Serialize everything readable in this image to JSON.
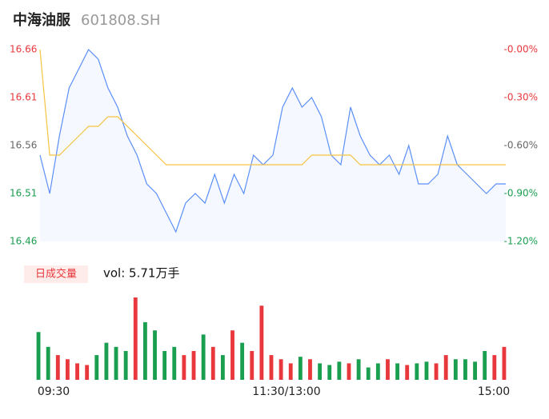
{
  "header": {
    "title": "中海油服",
    "subtitle": "601808.SH"
  },
  "chart_data": [
    {
      "type": "line",
      "categories": [
        "09:30",
        null,
        null,
        null,
        null,
        null,
        null,
        null,
        null,
        null,
        null,
        null,
        null,
        null,
        null,
        null,
        null,
        null,
        null,
        null,
        null,
        null,
        null,
        null,
        "11:30/13:00",
        null,
        null,
        null,
        null,
        null,
        null,
        null,
        null,
        null,
        null,
        null,
        null,
        null,
        null,
        null,
        null,
        null,
        null,
        null,
        null,
        null,
        null,
        null,
        "15:00"
      ],
      "ylim": [
        16.46,
        16.66
      ],
      "yticks": [
        16.46,
        16.51,
        16.56,
        16.61,
        16.66
      ],
      "y2lim": [
        -1.2,
        0
      ],
      "y2ticks": [
        {
          "value": -1.2,
          "label": "-1.20%"
        },
        {
          "value": -0.9,
          "label": "-0.90%"
        },
        {
          "value": -0.6,
          "label": "-0.60%"
        },
        {
          "value": -0.3,
          "label": "-0.30%"
        },
        {
          "value": 0,
          "label": "-0.00%"
        }
      ],
      "up_color": "#e8383d",
      "flat_color": "#666666",
      "down_color": "#1a9e4f",
      "series": [
        {
          "color": "#5b8ff9",
          "fill": true,
          "values": [
            16.55,
            16.51,
            16.57,
            16.62,
            16.64,
            16.66,
            16.65,
            16.62,
            16.6,
            16.57,
            16.55,
            16.52,
            16.51,
            16.49,
            16.47,
            16.5,
            16.51,
            16.5,
            16.53,
            16.5,
            16.53,
            16.51,
            16.55,
            16.54,
            16.55,
            16.6,
            16.62,
            16.6,
            16.61,
            16.59,
            16.55,
            16.54,
            16.6,
            16.57,
            16.55,
            16.54,
            16.55,
            16.53,
            16.56,
            16.52,
            16.52,
            16.53,
            16.57,
            16.54,
            16.53,
            16.52,
            16.51,
            16.52,
            16.52
          ]
        },
        {
          "color": "#f5c342",
          "fill": false,
          "values": [
            16.66,
            16.55,
            16.55,
            16.56,
            16.57,
            16.58,
            16.58,
            16.59,
            16.59,
            16.58,
            16.57,
            16.56,
            16.55,
            16.54,
            16.54,
            16.54,
            16.54,
            16.54,
            16.54,
            16.54,
            16.54,
            16.54,
            16.54,
            16.54,
            16.54,
            16.54,
            16.54,
            16.54,
            16.55,
            16.55,
            16.55,
            16.55,
            16.55,
            16.54,
            16.54,
            16.54,
            16.54,
            16.54,
            16.54,
            16.54,
            16.54,
            16.54,
            16.54,
            16.54,
            16.54,
            16.54,
            16.54,
            16.54,
            16.54
          ]
        }
      ]
    },
    {
      "type": "bar",
      "label": "日成交量",
      "annotation": "vol: 5.71万手",
      "values": [
        58,
        40,
        30,
        25,
        20,
        18,
        30,
        45,
        40,
        35,
        100,
        70,
        60,
        35,
        40,
        30,
        35,
        55,
        40,
        30,
        60,
        45,
        35,
        90,
        30,
        25,
        20,
        28,
        25,
        20,
        18,
        22,
        20,
        25,
        15,
        20,
        25,
        20,
        18,
        20,
        22,
        20,
        30,
        25,
        25,
        22,
        35,
        30,
        40
      ],
      "colors": [
        "#1a9e4f",
        "#1a9e4f",
        "#e8383d",
        "#e8383d",
        "#e8383d",
        "#e8383d",
        "#1a9e4f",
        "#1a9e4f",
        "#1a9e4f",
        "#1a9e4f",
        "#e8383d",
        "#1a9e4f",
        "#1a9e4f",
        "#1a9e4f",
        "#1a9e4f",
        "#e8383d",
        "#e8383d",
        "#1a9e4f",
        "#e8383d",
        "#1a9e4f",
        "#e8383d",
        "#1a9e4f",
        "#e8383d",
        "#e8383d",
        "#e8383d",
        "#e8383d",
        "#e8383d",
        "#1a9e4f",
        "#e8383d",
        "#1a9e4f",
        "#1a9e4f",
        "#1a9e4f",
        "#e8383d",
        "#1a9e4f",
        "#1a9e4f",
        "#1a9e4f",
        "#e8383d",
        "#1a9e4f",
        "#e8383d",
        "#1a9e4f",
        "#1a9e4f",
        "#e8383d",
        "#e8383d",
        "#1a9e4f",
        "#1a9e4f",
        "#1a9e4f",
        "#1a9e4f",
        "#e8383d",
        "#e8383d"
      ]
    }
  ]
}
